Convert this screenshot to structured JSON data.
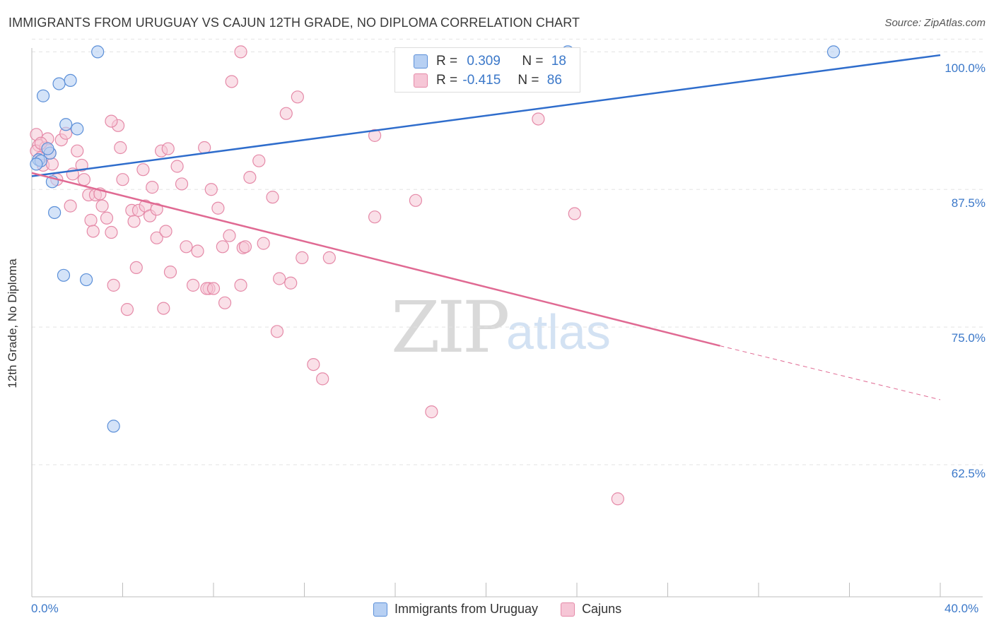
{
  "title": "IMMIGRANTS FROM URUGUAY VS CAJUN 12TH GRADE, NO DIPLOMA CORRELATION CHART",
  "source": "Source: ZipAtlas.com",
  "watermark": {
    "zip": "ZIP",
    "atlas": "atlas"
  },
  "colors": {
    "blue_fill": "#b7d0f3",
    "blue_stroke": "#5b8fd8",
    "blue_line": "#2f6dcc",
    "pink_fill": "#f6c6d6",
    "pink_stroke": "#e58aa8",
    "pink_line": "#e06a93",
    "tick_text": "#3b78c9",
    "grid": "#e3e3e3"
  },
  "legend": {
    "row1": {
      "r_label": "R =",
      "r_value": "0.309",
      "n_label": "N =",
      "n_value": "18"
    },
    "row2": {
      "r_label": "R =",
      "r_value": "-0.415",
      "n_label": "N =",
      "n_value": "86"
    }
  },
  "bottom_legend": {
    "series1": "Immigrants from Uruguay",
    "series2": "Cajuns"
  },
  "chart_data": {
    "type": "scatter",
    "title": "IMMIGRANTS FROM URUGUAY VS CAJUN 12TH GRADE, NO DIPLOMA CORRELATION CHART",
    "xlabel": "",
    "ylabel": "12th Grade, No Diploma",
    "xlim": [
      0,
      40
    ],
    "ylim": [
      50.5,
      101.5
    ],
    "x_ticks_labeled": [
      "0.0%",
      "40.0%"
    ],
    "y_ticks": [
      62.5,
      75.0,
      87.5,
      100.0
    ],
    "y_tick_labels": [
      "62.5%",
      "75.0%",
      "87.5%",
      "100.0%"
    ],
    "grid": true,
    "legend_position": "top-center",
    "series": [
      {
        "name": "Immigrants from Uruguay",
        "R": 0.309,
        "N": 18,
        "trend": {
          "x": [
            0,
            40
          ],
          "y": [
            88.7,
            99.7
          ]
        },
        "points": [
          [
            0.3,
            90.2
          ],
          [
            0.4,
            90.1
          ],
          [
            0.2,
            89.8
          ],
          [
            0.8,
            90.8
          ],
          [
            0.7,
            91.2
          ],
          [
            0.9,
            88.2
          ],
          [
            1.0,
            85.4
          ],
          [
            1.2,
            97.1
          ],
          [
            1.7,
            97.4
          ],
          [
            1.5,
            93.4
          ],
          [
            2.0,
            93.0
          ],
          [
            1.4,
            79.7
          ],
          [
            2.4,
            79.3
          ],
          [
            3.6,
            66.0
          ],
          [
            2.9,
            100.0
          ],
          [
            23.6,
            100.0
          ],
          [
            35.3,
            100.0
          ],
          [
            0.5,
            96.0
          ]
        ]
      },
      {
        "name": "Cajuns",
        "R": -0.415,
        "N": 86,
        "trend": {
          "x": [
            0,
            30.3
          ],
          "y": [
            89.0,
            73.3
          ]
        },
        "trend_dashed": {
          "x": [
            30.3,
            40
          ],
          "y": [
            73.3,
            68.4
          ]
        },
        "points": [
          [
            0.2,
            92.5
          ],
          [
            0.3,
            91.5
          ],
          [
            0.2,
            91.0
          ],
          [
            0.4,
            90.4
          ],
          [
            0.5,
            89.7
          ],
          [
            0.6,
            91.3
          ],
          [
            0.7,
            92.1
          ],
          [
            0.8,
            90.8
          ],
          [
            0.9,
            89.8
          ],
          [
            1.1,
            88.4
          ],
          [
            1.3,
            92.0
          ],
          [
            1.5,
            92.6
          ],
          [
            1.7,
            86.0
          ],
          [
            1.8,
            88.9
          ],
          [
            2.0,
            91.0
          ],
          [
            2.2,
            89.7
          ],
          [
            2.3,
            88.4
          ],
          [
            2.5,
            87.0
          ],
          [
            2.6,
            84.7
          ],
          [
            2.7,
            83.7
          ],
          [
            2.8,
            87.0
          ],
          [
            3.0,
            87.1
          ],
          [
            3.1,
            86.0
          ],
          [
            3.3,
            84.9
          ],
          [
            3.5,
            83.6
          ],
          [
            3.6,
            78.8
          ],
          [
            3.8,
            93.3
          ],
          [
            3.9,
            91.3
          ],
          [
            4.0,
            88.4
          ],
          [
            4.2,
            76.6
          ],
          [
            4.4,
            85.6
          ],
          [
            4.5,
            84.6
          ],
          [
            4.6,
            80.4
          ],
          [
            4.7,
            85.6
          ],
          [
            4.9,
            89.3
          ],
          [
            5.0,
            86.0
          ],
          [
            5.2,
            85.1
          ],
          [
            5.3,
            87.7
          ],
          [
            5.5,
            83.1
          ],
          [
            5.7,
            91.0
          ],
          [
            5.8,
            76.7
          ],
          [
            5.9,
            83.7
          ],
          [
            6.1,
            80.0
          ],
          [
            6.4,
            89.6
          ],
          [
            6.6,
            88.0
          ],
          [
            6.8,
            82.3
          ],
          [
            7.1,
            78.8
          ],
          [
            7.3,
            81.9
          ],
          [
            7.6,
            91.3
          ],
          [
            7.8,
            78.5
          ],
          [
            7.9,
            87.5
          ],
          [
            8.2,
            85.8
          ],
          [
            8.4,
            82.3
          ],
          [
            8.7,
            83.3
          ],
          [
            8.8,
            97.3
          ],
          [
            9.2,
            78.8
          ],
          [
            9.3,
            82.2
          ],
          [
            9.4,
            82.3
          ],
          [
            9.6,
            88.6
          ],
          [
            10.0,
            90.1
          ],
          [
            10.2,
            82.6
          ],
          [
            10.6,
            86.8
          ],
          [
            10.9,
            79.4
          ],
          [
            11.2,
            94.4
          ],
          [
            11.4,
            79.0
          ],
          [
            11.7,
            95.9
          ],
          [
            11.9,
            81.3
          ],
          [
            12.4,
            71.6
          ],
          [
            12.8,
            70.3
          ],
          [
            13.1,
            81.3
          ],
          [
            15.1,
            92.4
          ],
          [
            15.1,
            85.0
          ],
          [
            16.9,
            86.5
          ],
          [
            17.6,
            67.3
          ],
          [
            22.3,
            93.9
          ],
          [
            23.9,
            85.3
          ],
          [
            25.8,
            59.4
          ],
          [
            9.2,
            100.0
          ],
          [
            3.5,
            93.7
          ],
          [
            0.4,
            91.7
          ],
          [
            6.0,
            91.2
          ],
          [
            7.7,
            78.5
          ],
          [
            8.0,
            78.5
          ],
          [
            8.5,
            77.2
          ],
          [
            5.5,
            85.7
          ],
          [
            10.8,
            74.6
          ]
        ]
      }
    ]
  }
}
